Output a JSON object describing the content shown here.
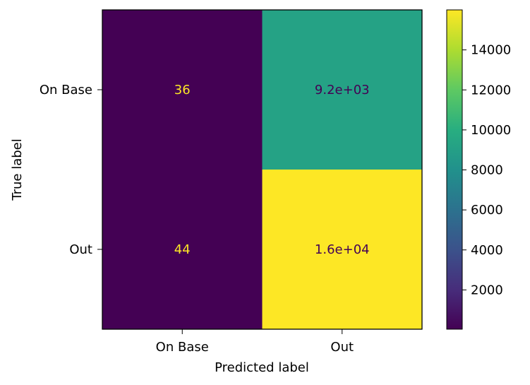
{
  "chart_data": {
    "type": "heatmap",
    "title": "",
    "xlabel": "Predicted label",
    "ylabel": "True label",
    "x_categories": [
      "On Base",
      "Out"
    ],
    "y_categories": [
      "On Base",
      "Out"
    ],
    "values": [
      [
        36,
        9200
      ],
      [
        44,
        16000
      ]
    ],
    "cell_labels": [
      [
        "36",
        "9.2e+03"
      ],
      [
        "44",
        "1.6e+04"
      ]
    ],
    "colormap": "viridis",
    "colorbar": {
      "range": [
        36,
        16000
      ],
      "ticks": [
        "2000",
        "4000",
        "6000",
        "8000",
        "10000",
        "12000",
        "14000"
      ]
    },
    "grid": false
  }
}
